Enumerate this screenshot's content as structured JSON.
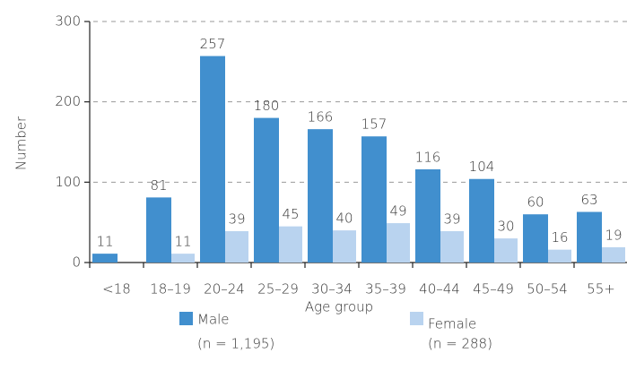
{
  "chart_data": {
    "type": "bar",
    "x_label": "Age group",
    "y_label": "Number",
    "categories": [
      "<18",
      "18–19",
      "20–24",
      "25–29",
      "30–34",
      "35–39",
      "40–44",
      "45–49",
      "50–54",
      "55+"
    ],
    "series": [
      {
        "name": "Male",
        "note": "(n = 1,195)",
        "color": "#418fce",
        "values": [
          11,
          81,
          257,
          180,
          166,
          157,
          116,
          104,
          60,
          63
        ]
      },
      {
        "name": "Female",
        "note": "(n = 288)",
        "color": "#b9d3ef",
        "values": [
          null,
          11,
          39,
          45,
          40,
          49,
          39,
          30,
          16,
          19
        ]
      }
    ],
    "ylim": [
      0,
      300
    ],
    "yticks": [
      0,
      100,
      200,
      300
    ],
    "grid": true
  }
}
